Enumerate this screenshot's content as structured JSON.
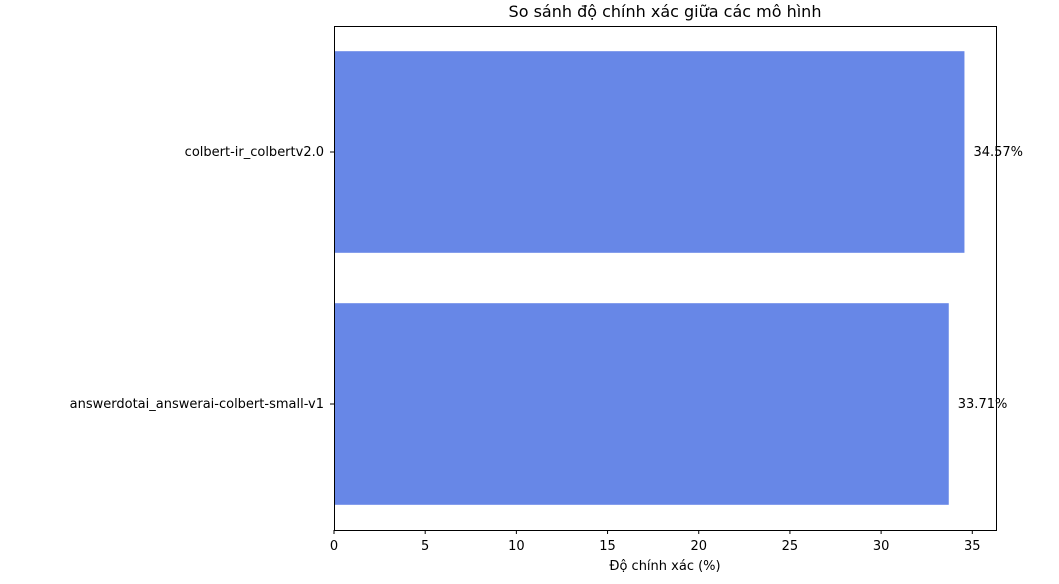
{
  "chart_data": {
    "type": "bar",
    "orientation": "horizontal",
    "title": "So sánh độ chính xác giữa các mô hình",
    "xlabel": "Độ chính xác (%)",
    "ylabel": "",
    "categories": [
      "colbert-ir_colbertv2.0",
      "answerdotai_answerai-colbert-small-v1"
    ],
    "values": [
      34.57,
      33.71
    ],
    "data_labels": [
      "34.57%",
      "33.71%"
    ],
    "xlim": [
      0,
      36.3
    ],
    "xticks": [
      0,
      5,
      10,
      15,
      20,
      25,
      30,
      35
    ],
    "xtick_labels": [
      "0",
      "5",
      "10",
      "15",
      "20",
      "25",
      "30",
      "35"
    ],
    "bar_color": "#6787e7",
    "grid": false,
    "legend": "none"
  }
}
